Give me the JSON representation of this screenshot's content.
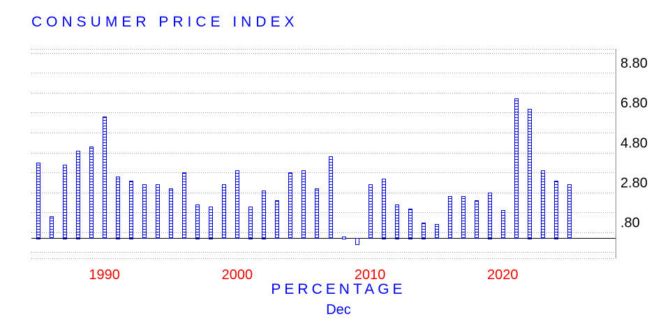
{
  "chart_data": {
    "type": "bar",
    "title": "CONSUMER PRICE INDEX",
    "xlabel": "PERCENTAGE",
    "x_sublabel": "Dec",
    "ylabel": "",
    "x": [
      1985,
      1986,
      1987,
      1988,
      1989,
      1990,
      1991,
      1992,
      1993,
      1994,
      1995,
      1996,
      1997,
      1998,
      1999,
      2000,
      2001,
      2002,
      2003,
      2004,
      2005,
      2006,
      2007,
      2008,
      2009,
      2010,
      2011,
      2012,
      2013,
      2014,
      2015,
      2016,
      2017,
      2018,
      2019,
      2020,
      2021,
      2022,
      2023,
      2024,
      2025
    ],
    "values": [
      3.8,
      1.1,
      3.7,
      4.4,
      4.6,
      6.1,
      3.1,
      2.9,
      2.7,
      2.7,
      2.5,
      3.3,
      1.7,
      1.6,
      2.7,
      3.4,
      1.6,
      2.4,
      1.9,
      3.3,
      3.4,
      2.5,
      4.1,
      0.1,
      -0.3,
      2.7,
      3.0,
      1.7,
      1.5,
      0.8,
      0.7,
      2.1,
      2.1,
      1.9,
      2.3,
      1.4,
      7.0,
      6.5,
      3.4,
      2.9,
      2.7
    ],
    "yticks": [
      ".80",
      "2.80",
      "4.80",
      "6.80",
      "8.80"
    ],
    "ylim": [
      -1.0,
      9.5
    ],
    "xticks": [
      "1990",
      "2000",
      "2010",
      "2020"
    ],
    "xlim": [
      1984.5,
      2028.5
    ],
    "grid": true,
    "colors": {
      "title": "#0000ee",
      "xtick": "#ee0000",
      "bar_stroke": "#0000cc",
      "grid": "#a0a0a0"
    }
  }
}
